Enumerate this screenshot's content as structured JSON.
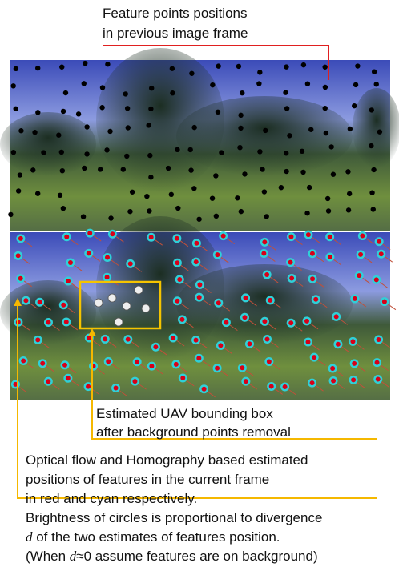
{
  "top_label": {
    "lines": [
      "Feature points positions",
      "in previous image frame"
    ]
  },
  "bbox_label": {
    "lines": [
      "Estimated UAV bounding box",
      "after background points removal"
    ]
  },
  "flow_label": {
    "lines": [
      "Optical flow and Homography based estimated",
      "positions of features in the current frame",
      "in red and cyan respectively."
    ]
  },
  "brightness_label": {
    "lines": [
      [
        "Brightness of circles is proportional to divergence"
      ],
      [
        "d",
        " of the two estimates of features position."
      ],
      [
        "(When ",
        "d",
        "≈0 assume features are on background)"
      ]
    ]
  }
}
